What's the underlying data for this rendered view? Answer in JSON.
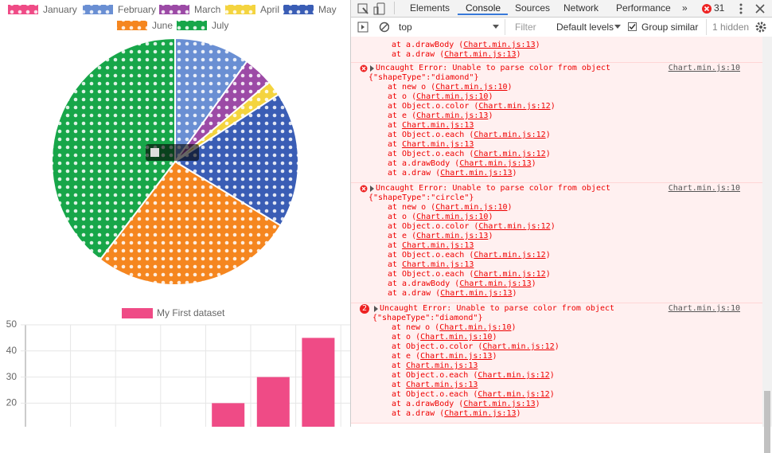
{
  "chart_data": [
    {
      "type": "pie",
      "categories": [
        "January",
        "February",
        "March",
        "April",
        "May",
        "June",
        "July"
      ],
      "values": [
        0,
        10,
        4,
        2,
        18,
        27,
        40
      ],
      "colors": [
        "#ef4b86",
        "#6a8fd3",
        "#9c4aa6",
        "#f4d43f",
        "#3a5db5",
        "#f5861f",
        "#17a649"
      ]
    },
    {
      "type": "bar",
      "categories": [
        null,
        null,
        null,
        null,
        null,
        null,
        null
      ],
      "series": [
        {
          "name": "My First dataset",
          "color": "#ef4b86",
          "values": [
            null,
            null,
            null,
            null,
            20,
            30,
            45
          ]
        }
      ],
      "ylim": [
        0,
        50
      ],
      "yticks": [
        20,
        30,
        40,
        50
      ],
      "grid": true
    }
  ],
  "devtools": {
    "tabs": [
      "Elements",
      "Console",
      "Sources",
      "Network",
      "Performance"
    ],
    "more": "»",
    "error_count": "31",
    "toolbar": {
      "context": "top",
      "filter": "Filter",
      "levels": "Default levels",
      "group": "Group similar",
      "hidden": "1 hidden"
    },
    "prompt": ">",
    "messages": [
      {
        "stack": [
          [
            "at a.drawBody (",
            "Chart.min.js:13",
            ")"
          ],
          [
            "at a.draw (",
            "Chart.min.js:13",
            ")"
          ]
        ]
      },
      {
        "title": "Uncaught Error: Unable to parse color from object",
        "detail": "{\"shapeType\":\"diamond\"}",
        "source": "Chart.min.js:10",
        "stack": [
          [
            "at new o (",
            "Chart.min.js:10",
            ")"
          ],
          [
            "at o (",
            "Chart.min.js:10",
            ")"
          ],
          [
            "at Object.o.color (",
            "Chart.min.js:12",
            ")"
          ],
          [
            "at e (",
            "Chart.min.js:13",
            ")"
          ],
          [
            "at ",
            "Chart.min.js:13"
          ],
          [
            "at Object.o.each (",
            "Chart.min.js:12",
            ")"
          ],
          [
            "at ",
            "Chart.min.js:13"
          ],
          [
            "at Object.o.each (",
            "Chart.min.js:12",
            ")"
          ],
          [
            "at a.drawBody (",
            "Chart.min.js:13",
            ")"
          ],
          [
            "at a.draw (",
            "Chart.min.js:13",
            ")"
          ]
        ]
      },
      {
        "title": "Uncaught Error: Unable to parse color from object",
        "detail": "{\"shapeType\":\"circle\"}",
        "source": "Chart.min.js:10",
        "stack": [
          [
            "at new o (",
            "Chart.min.js:10",
            ")"
          ],
          [
            "at o (",
            "Chart.min.js:10",
            ")"
          ],
          [
            "at Object.o.color (",
            "Chart.min.js:12",
            ")"
          ],
          [
            "at e (",
            "Chart.min.js:13",
            ")"
          ],
          [
            "at ",
            "Chart.min.js:13"
          ],
          [
            "at Object.o.each (",
            "Chart.min.js:12",
            ")"
          ],
          [
            "at ",
            "Chart.min.js:13"
          ],
          [
            "at Object.o.each (",
            "Chart.min.js:12",
            ")"
          ],
          [
            "at a.drawBody (",
            "Chart.min.js:13",
            ")"
          ],
          [
            "at a.draw (",
            "Chart.min.js:13",
            ")"
          ]
        ]
      },
      {
        "count": 2,
        "title": "Uncaught Error: Unable to parse color from object",
        "detail": "{\"shapeType\":\"diamond\"}",
        "source": "Chart.min.js:10",
        "stack": [
          [
            "at new o (",
            "Chart.min.js:10",
            ")"
          ],
          [
            "at o (",
            "Chart.min.js:10",
            ")"
          ],
          [
            "at Object.o.color (",
            "Chart.min.js:12",
            ")"
          ],
          [
            "at e (",
            "Chart.min.js:13",
            ")"
          ],
          [
            "at ",
            "Chart.min.js:13"
          ],
          [
            "at Object.o.each (",
            "Chart.min.js:12",
            ")"
          ],
          [
            "at ",
            "Chart.min.js:13"
          ],
          [
            "at Object.o.each (",
            "Chart.min.js:12",
            ")"
          ],
          [
            "at a.drawBody (",
            "Chart.min.js:13",
            ")"
          ],
          [
            "at a.draw (",
            "Chart.min.js:13",
            ")"
          ]
        ]
      }
    ]
  }
}
